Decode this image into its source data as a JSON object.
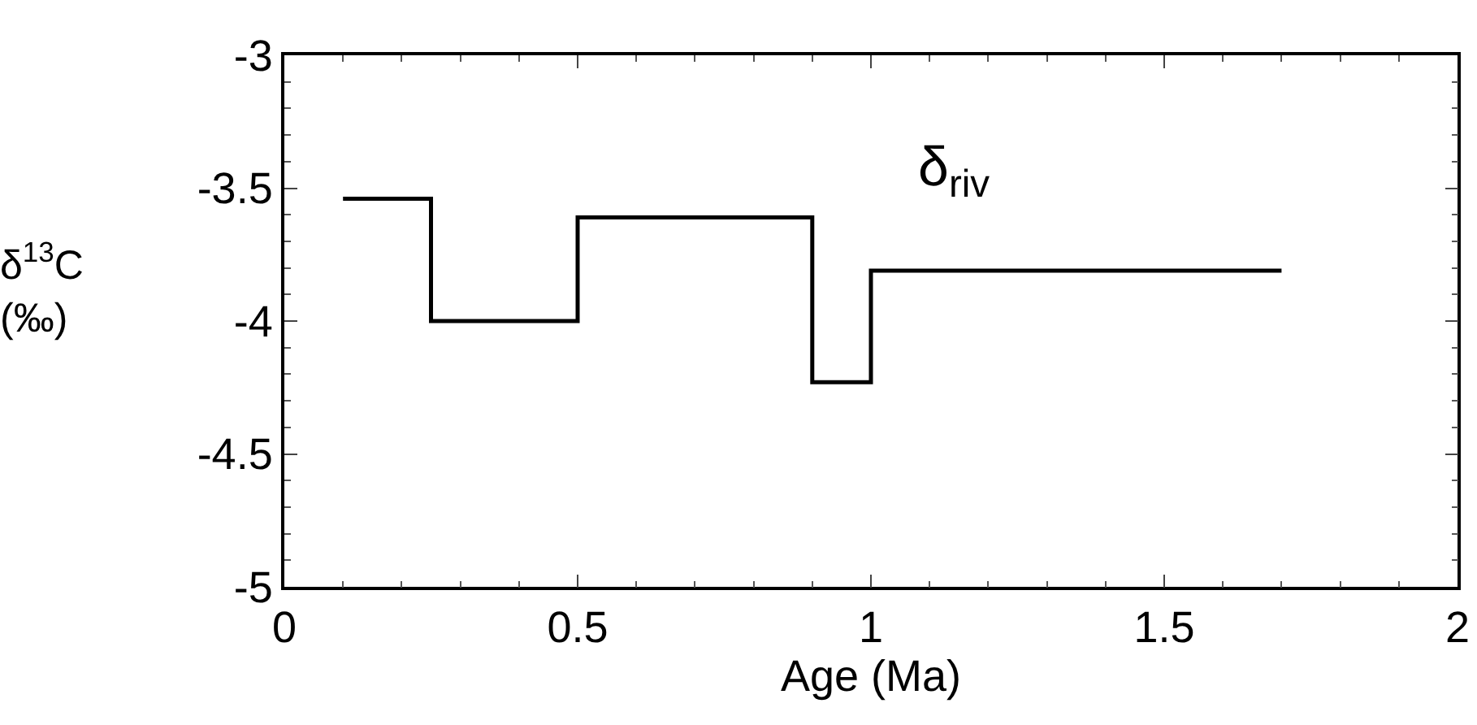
{
  "chart_data": {
    "type": "step",
    "xlabel": "Age (Ma)",
    "ylabel": "δ$^{13}$C (‰)",
    "x": [
      0.1,
      0.25,
      0.5,
      0.9,
      1.0,
      1.7
    ],
    "series": [
      {
        "name": "δ$_{riv}$",
        "color": "#000000",
        "values": [
          -3.54,
          -4.0,
          -3.61,
          -4.23,
          -3.81,
          -3.81
        ]
      }
    ],
    "xlim": [
      0,
      2
    ],
    "xticks": [
      0,
      0.5,
      1,
      1.5,
      2
    ],
    "ylim": [
      -5,
      -3
    ],
    "yticks": [
      -5,
      -4.5,
      -4,
      -3.5,
      -3
    ],
    "grid": false,
    "legend": false,
    "marker": "none",
    "line_style": "solid"
  }
}
